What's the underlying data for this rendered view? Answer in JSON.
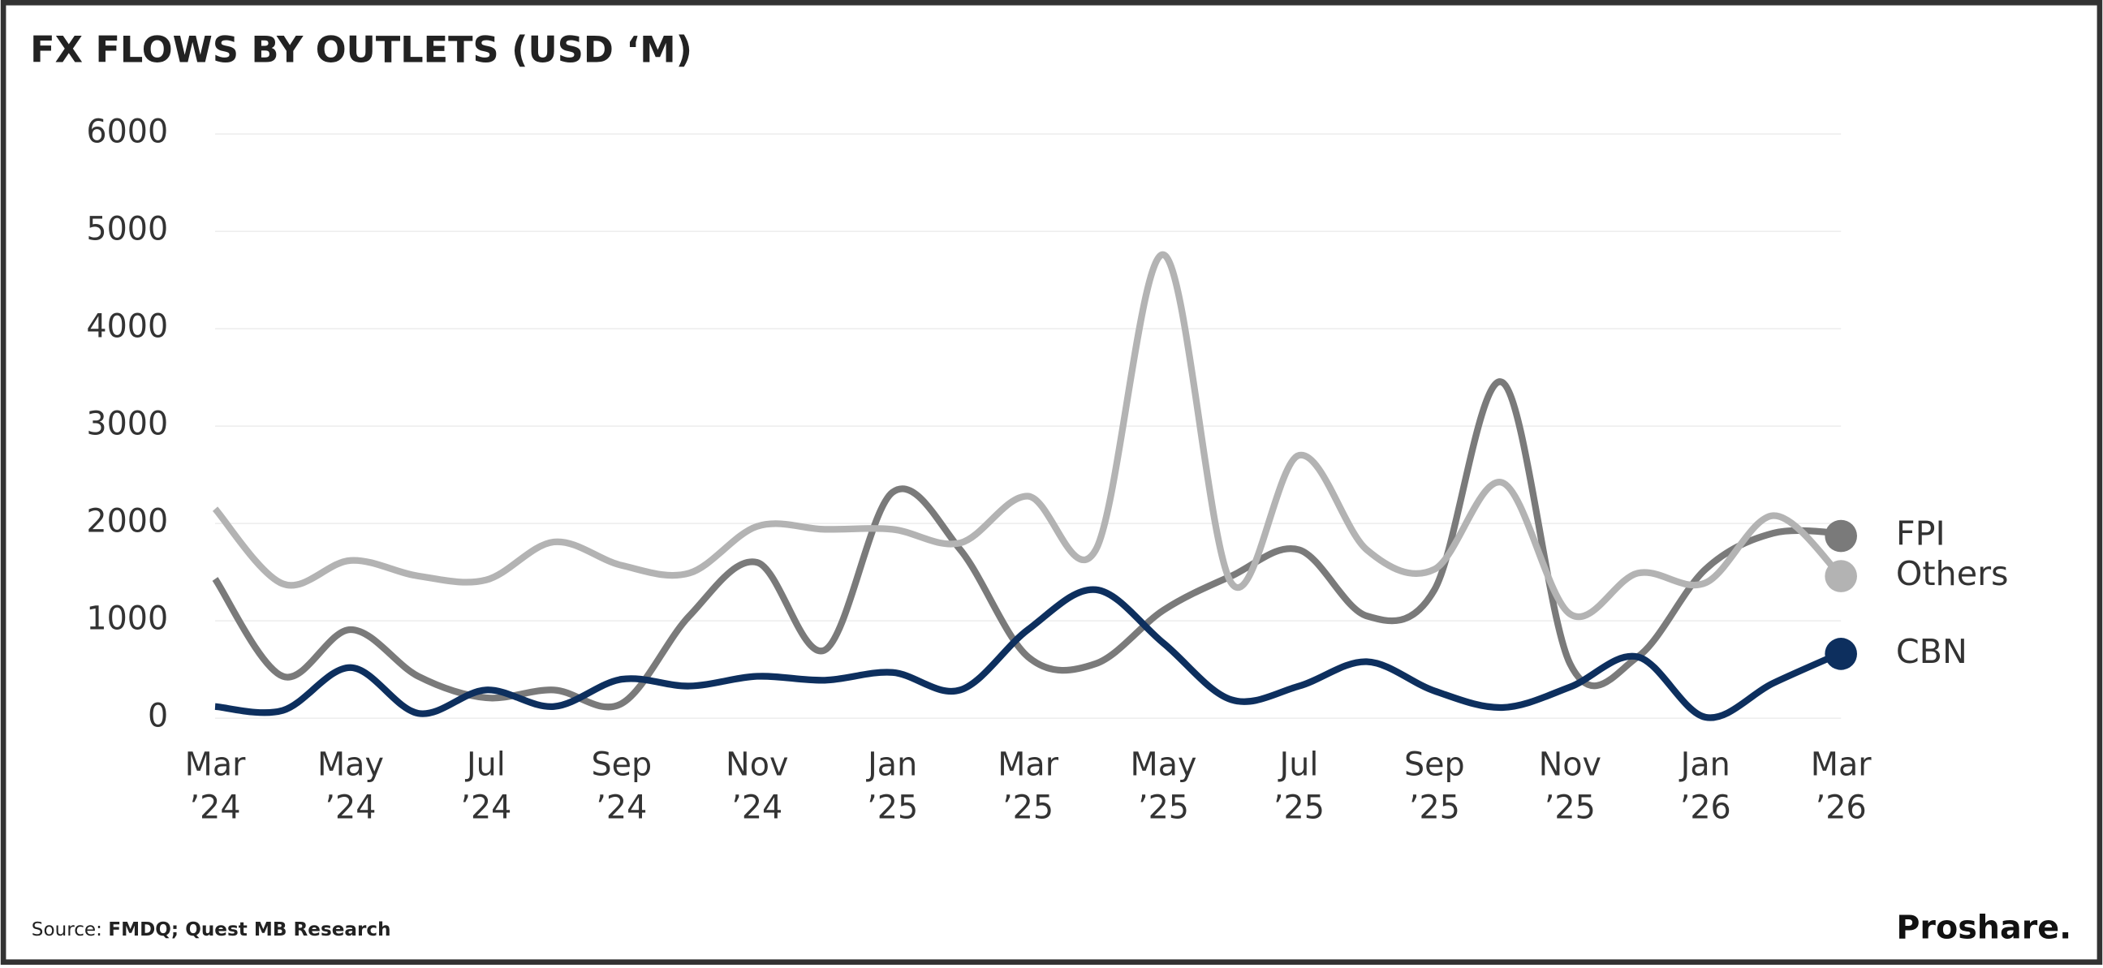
{
  "chart_data": {
    "type": "line",
    "title": "FX FLOWS BY OUTLETS (USD ‘M)",
    "categories": [
      "Mar ’24",
      null,
      "May ’24",
      null,
      "Jul ’24",
      null,
      "Sep ’24",
      null,
      "Nov ’24",
      null,
      "Jan ’25",
      null,
      "Mar ’25",
      null,
      "May ’25",
      null,
      "Jul ’25",
      null,
      "Sep ’25",
      null,
      "Nov ’25",
      null,
      "Jan ’26",
      null,
      "Mar ’26"
    ],
    "series": [
      {
        "name": "FPI",
        "color": "#7a7a7a",
        "values": [
          1430,
          430,
          910,
          430,
          210,
          290,
          150,
          1050,
          1600,
          700,
          2320,
          1730,
          630,
          560,
          1110,
          1460,
          1730,
          1050,
          1320,
          3450,
          560,
          630,
          1530,
          1900,
          1900
        ]
      },
      {
        "name": "Others",
        "color": "#b3b3b3",
        "values": [
          2150,
          1380,
          1620,
          1460,
          1420,
          1810,
          1570,
          1490,
          1970,
          1940,
          1940,
          1800,
          2280,
          1730,
          4760,
          1390,
          2700,
          1730,
          1530,
          2420,
          1070,
          1490,
          1390,
          2080,
          1460
        ]
      },
      {
        "name": "CBN",
        "color": "#0d2f5e",
        "values": [
          120,
          80,
          520,
          50,
          290,
          120,
          400,
          330,
          430,
          390,
          470,
          290,
          910,
          1320,
          770,
          190,
          330,
          580,
          280,
          110,
          320,
          630,
          10,
          360,
          670
        ]
      }
    ],
    "ylim": [
      0,
      6000
    ],
    "yticks": [
      0,
      1000,
      2000,
      3000,
      4000,
      5000,
      6000
    ],
    "grid": true,
    "source": {
      "label": "Source:",
      "text": "FMDQ; Quest MB Research"
    },
    "brand": "Proshare."
  }
}
